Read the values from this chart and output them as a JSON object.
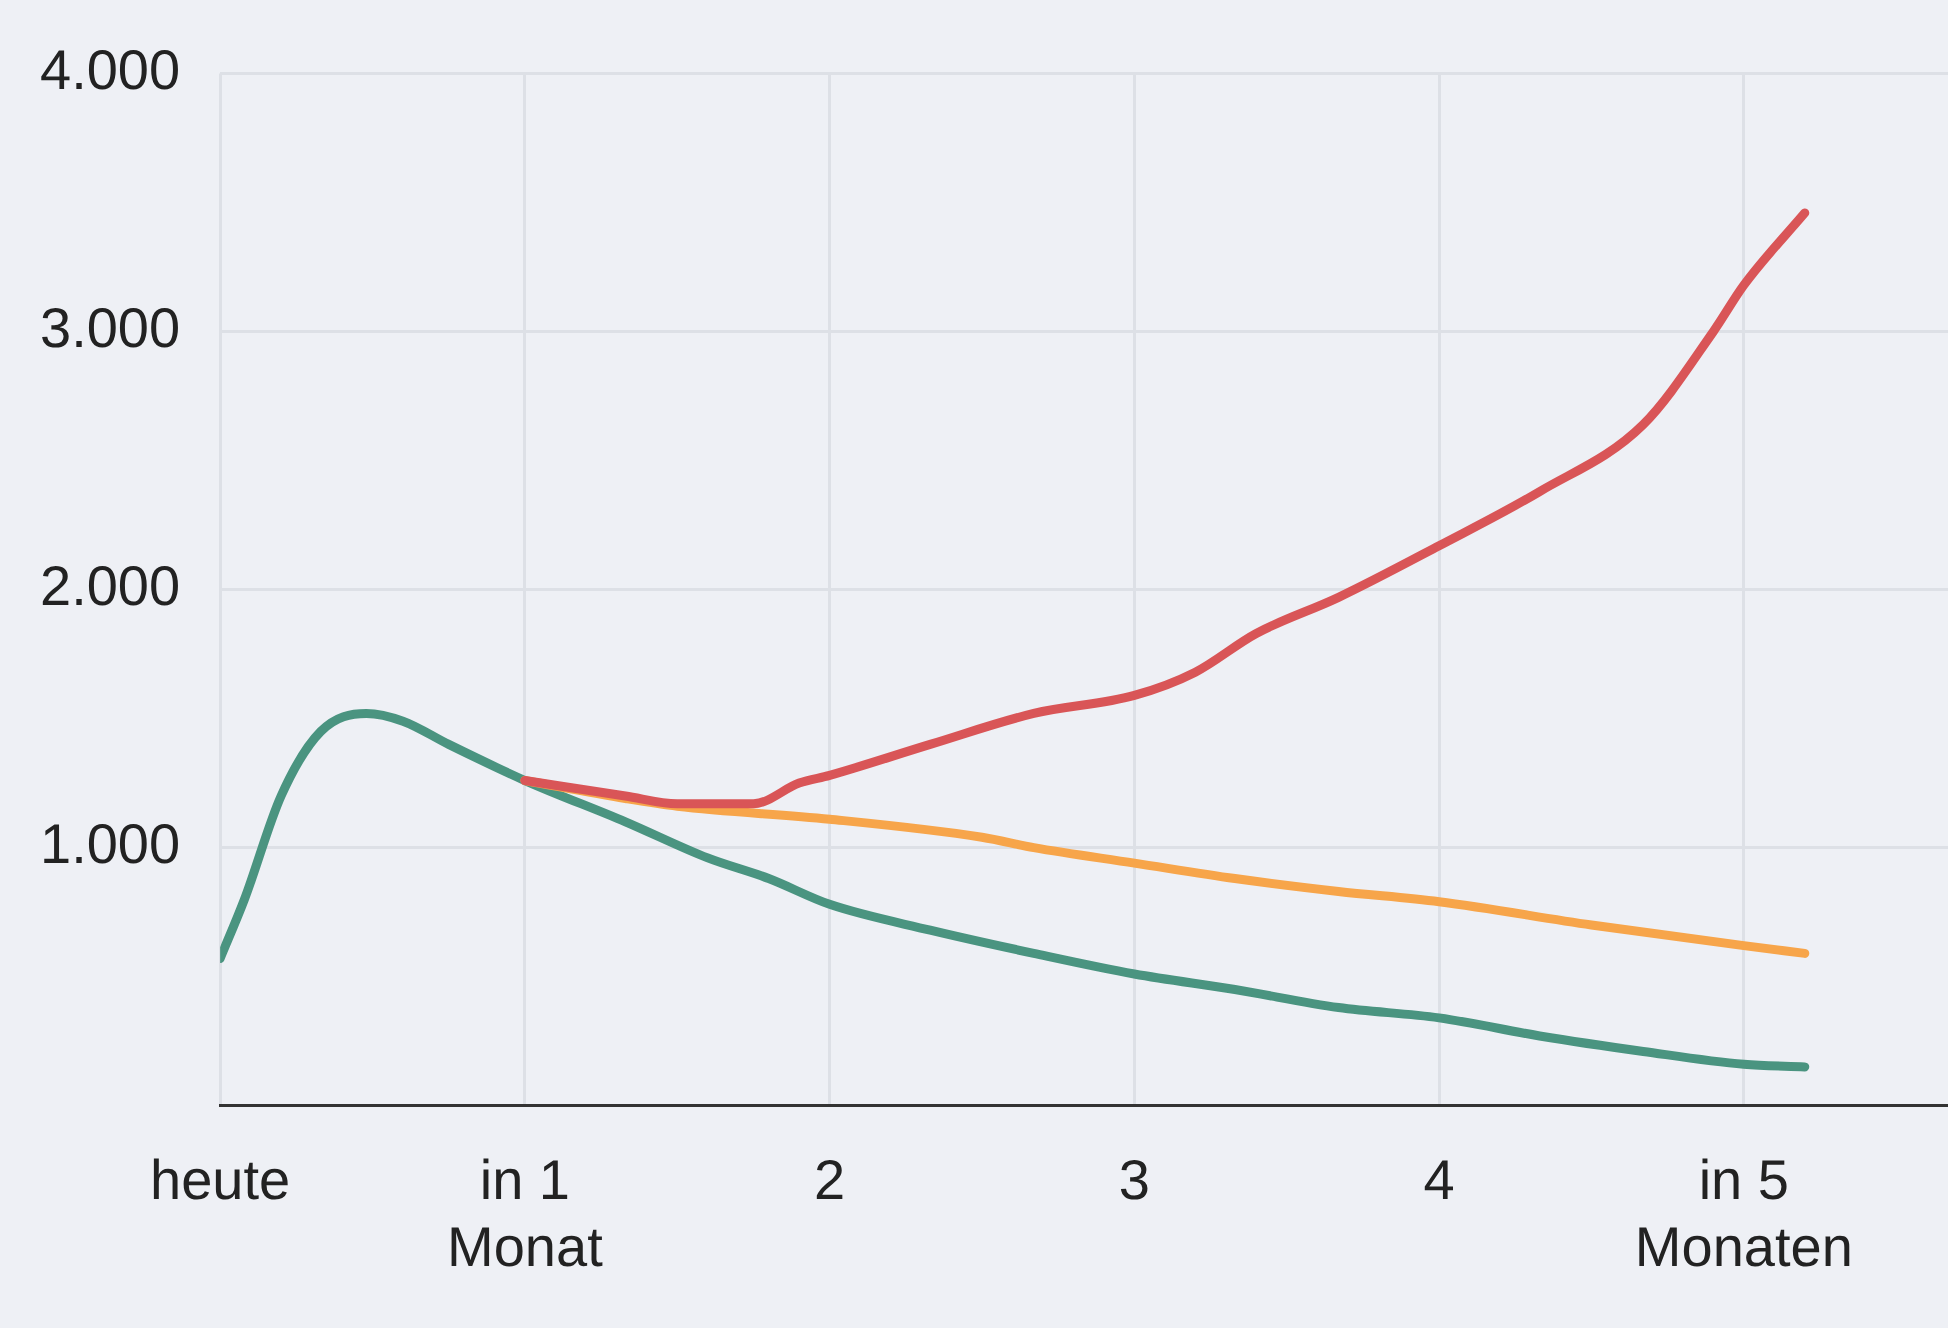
{
  "chart_data": {
    "type": "line",
    "xlim": [
      0,
      5.67
    ],
    "ylim": [
      0,
      4000
    ],
    "xticks": [
      {
        "value": 0,
        "label": "heute"
      },
      {
        "value": 1,
        "label": "in 1\nMonat"
      },
      2,
      3,
      4,
      {
        "value": 5,
        "label": "in 5\nMonaten"
      }
    ],
    "yticks": [
      {
        "value": 0,
        "label": null
      },
      {
        "value": 1000,
        "label": "1.000"
      },
      {
        "value": 2000,
        "label": "2.000"
      },
      {
        "value": 3000,
        "label": "3.000"
      },
      {
        "value": 4000,
        "label": "4.000"
      }
    ],
    "grid": true,
    "legend": false,
    "marker": "none",
    "line_style": "solid",
    "series": [
      {
        "color": "#d95557",
        "x": [
          1,
          1.33,
          1.5,
          1.75,
          1.9,
          2,
          2.33,
          2.67,
          3,
          3.2,
          3.4,
          3.67,
          4,
          4.33,
          4.67,
          4.9,
          5,
          5.2
        ],
        "values": [
          1260,
          1200,
          1170,
          1170,
          1250,
          1280,
          1400,
          1520,
          1590,
          1680,
          1830,
          1970,
          2170,
          2380,
          2640,
          3000,
          3180,
          3460
        ]
      },
      {
        "color": "#f7a54a",
        "x": [
          1,
          1.33,
          1.5,
          2,
          2.5,
          2.67,
          3,
          3.33,
          3.67,
          4,
          4.5,
          5,
          5.2
        ],
        "values": [
          1260,
          1190,
          1160,
          1110,
          1040,
          1000,
          940,
          880,
          830,
          790,
          700,
          620,
          590
        ]
      },
      {
        "color": "#4a9480",
        "x": [
          0,
          0.08,
          0.2,
          0.33,
          0.48,
          0.6,
          0.75,
          1,
          1.33,
          1.6,
          1.8,
          2,
          2.33,
          2.67,
          3,
          3.33,
          3.67,
          4,
          4.33,
          4.67,
          5,
          5.2
        ],
        "values": [
          570,
          800,
          1200,
          1450,
          1520,
          1490,
          1400,
          1260,
          1100,
          960,
          880,
          780,
          680,
          590,
          510,
          450,
          380,
          340,
          270,
          210,
          160,
          150
        ]
      }
    ]
  }
}
